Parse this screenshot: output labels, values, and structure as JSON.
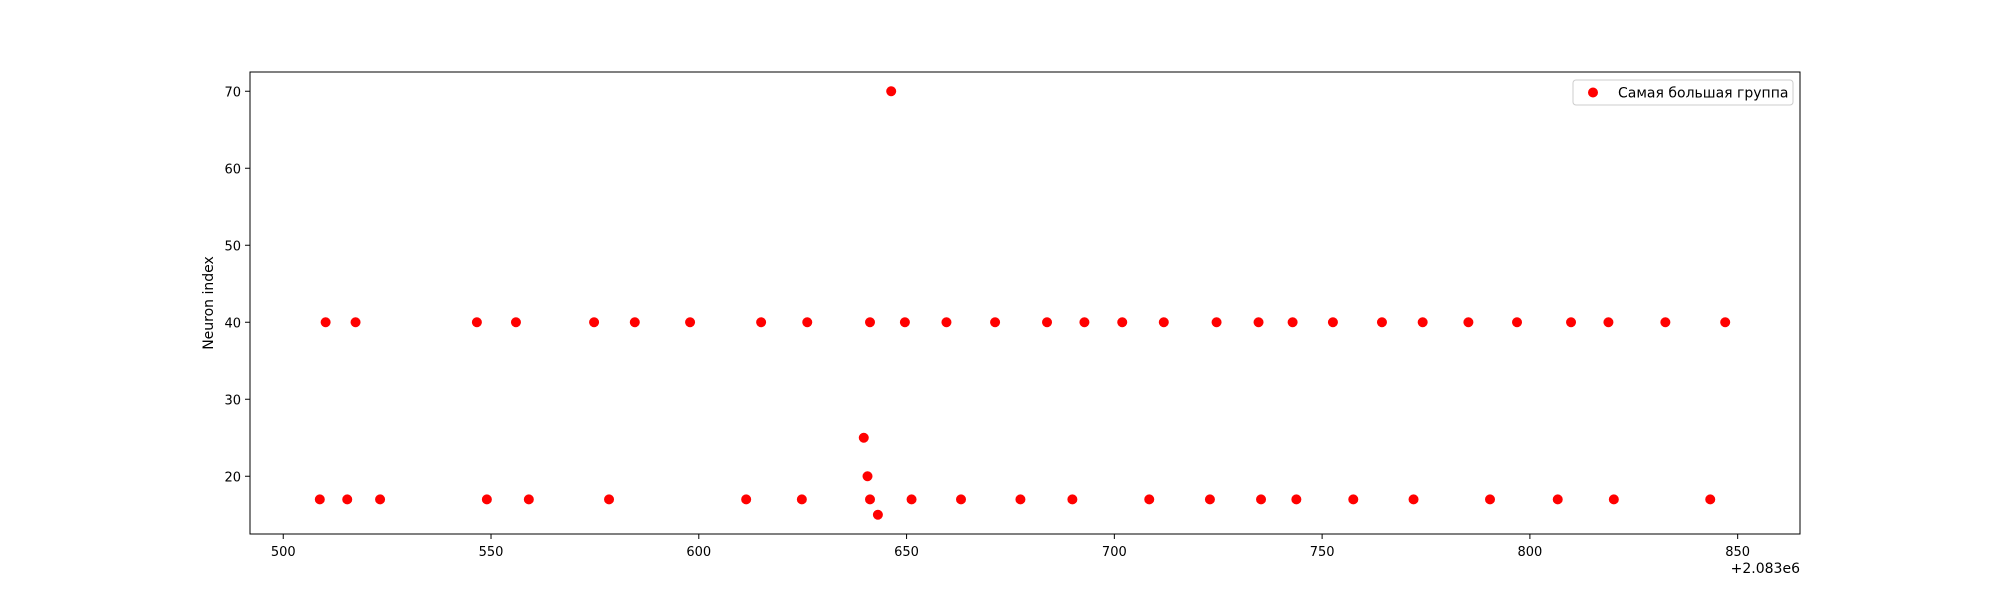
{
  "chart_data": {
    "type": "scatter",
    "title": "",
    "xlabel": "",
    "ylabel": "Neuron index",
    "x_offset_label": "+2.083e6",
    "xlim": [
      492,
      865
    ],
    "ylim": [
      12.5,
      72.5
    ],
    "x_ticks": [
      "500",
      "550",
      "600",
      "650",
      "700",
      "750",
      "800",
      "850"
    ],
    "y_ticks": [
      "20",
      "30",
      "40",
      "50",
      "60",
      "70"
    ],
    "grid": false,
    "legend": "top-right",
    "series": [
      {
        "name": "Самая большая группа",
        "color": "#ff0000",
        "points": [
          [
            508.8,
            17
          ],
          [
            510.2,
            40
          ],
          [
            515.4,
            17
          ],
          [
            517.4,
            40
          ],
          [
            523.3,
            17
          ],
          [
            546.6,
            40
          ],
          [
            549.0,
            17
          ],
          [
            556.0,
            40
          ],
          [
            559.1,
            17
          ],
          [
            574.8,
            40
          ],
          [
            578.4,
            17
          ],
          [
            584.6,
            40
          ],
          [
            597.9,
            40
          ],
          [
            611.4,
            17
          ],
          [
            615.0,
            40
          ],
          [
            624.8,
            17
          ],
          [
            626.1,
            40
          ],
          [
            639.7,
            25
          ],
          [
            640.6,
            20
          ],
          [
            641.2,
            17
          ],
          [
            641.2,
            40
          ],
          [
            643.1,
            15
          ],
          [
            646.3,
            70
          ],
          [
            649.6,
            40
          ],
          [
            651.2,
            17
          ],
          [
            659.6,
            40
          ],
          [
            663.1,
            17
          ],
          [
            671.3,
            40
          ],
          [
            677.4,
            17
          ],
          [
            683.8,
            40
          ],
          [
            689.9,
            17
          ],
          [
            692.8,
            40
          ],
          [
            701.9,
            40
          ],
          [
            708.4,
            17
          ],
          [
            711.9,
            40
          ],
          [
            723.0,
            17
          ],
          [
            724.6,
            40
          ],
          [
            734.7,
            40
          ],
          [
            735.3,
            17
          ],
          [
            742.9,
            40
          ],
          [
            743.8,
            17
          ],
          [
            752.6,
            40
          ],
          [
            757.5,
            17
          ],
          [
            764.4,
            40
          ],
          [
            772.0,
            17
          ],
          [
            774.2,
            40
          ],
          [
            785.2,
            40
          ],
          [
            790.4,
            17
          ],
          [
            796.9,
            40
          ],
          [
            806.7,
            17
          ],
          [
            809.9,
            40
          ],
          [
            818.9,
            40
          ],
          [
            820.2,
            17
          ],
          [
            832.6,
            40
          ],
          [
            843.4,
            17
          ],
          [
            847.0,
            40
          ]
        ]
      }
    ]
  }
}
